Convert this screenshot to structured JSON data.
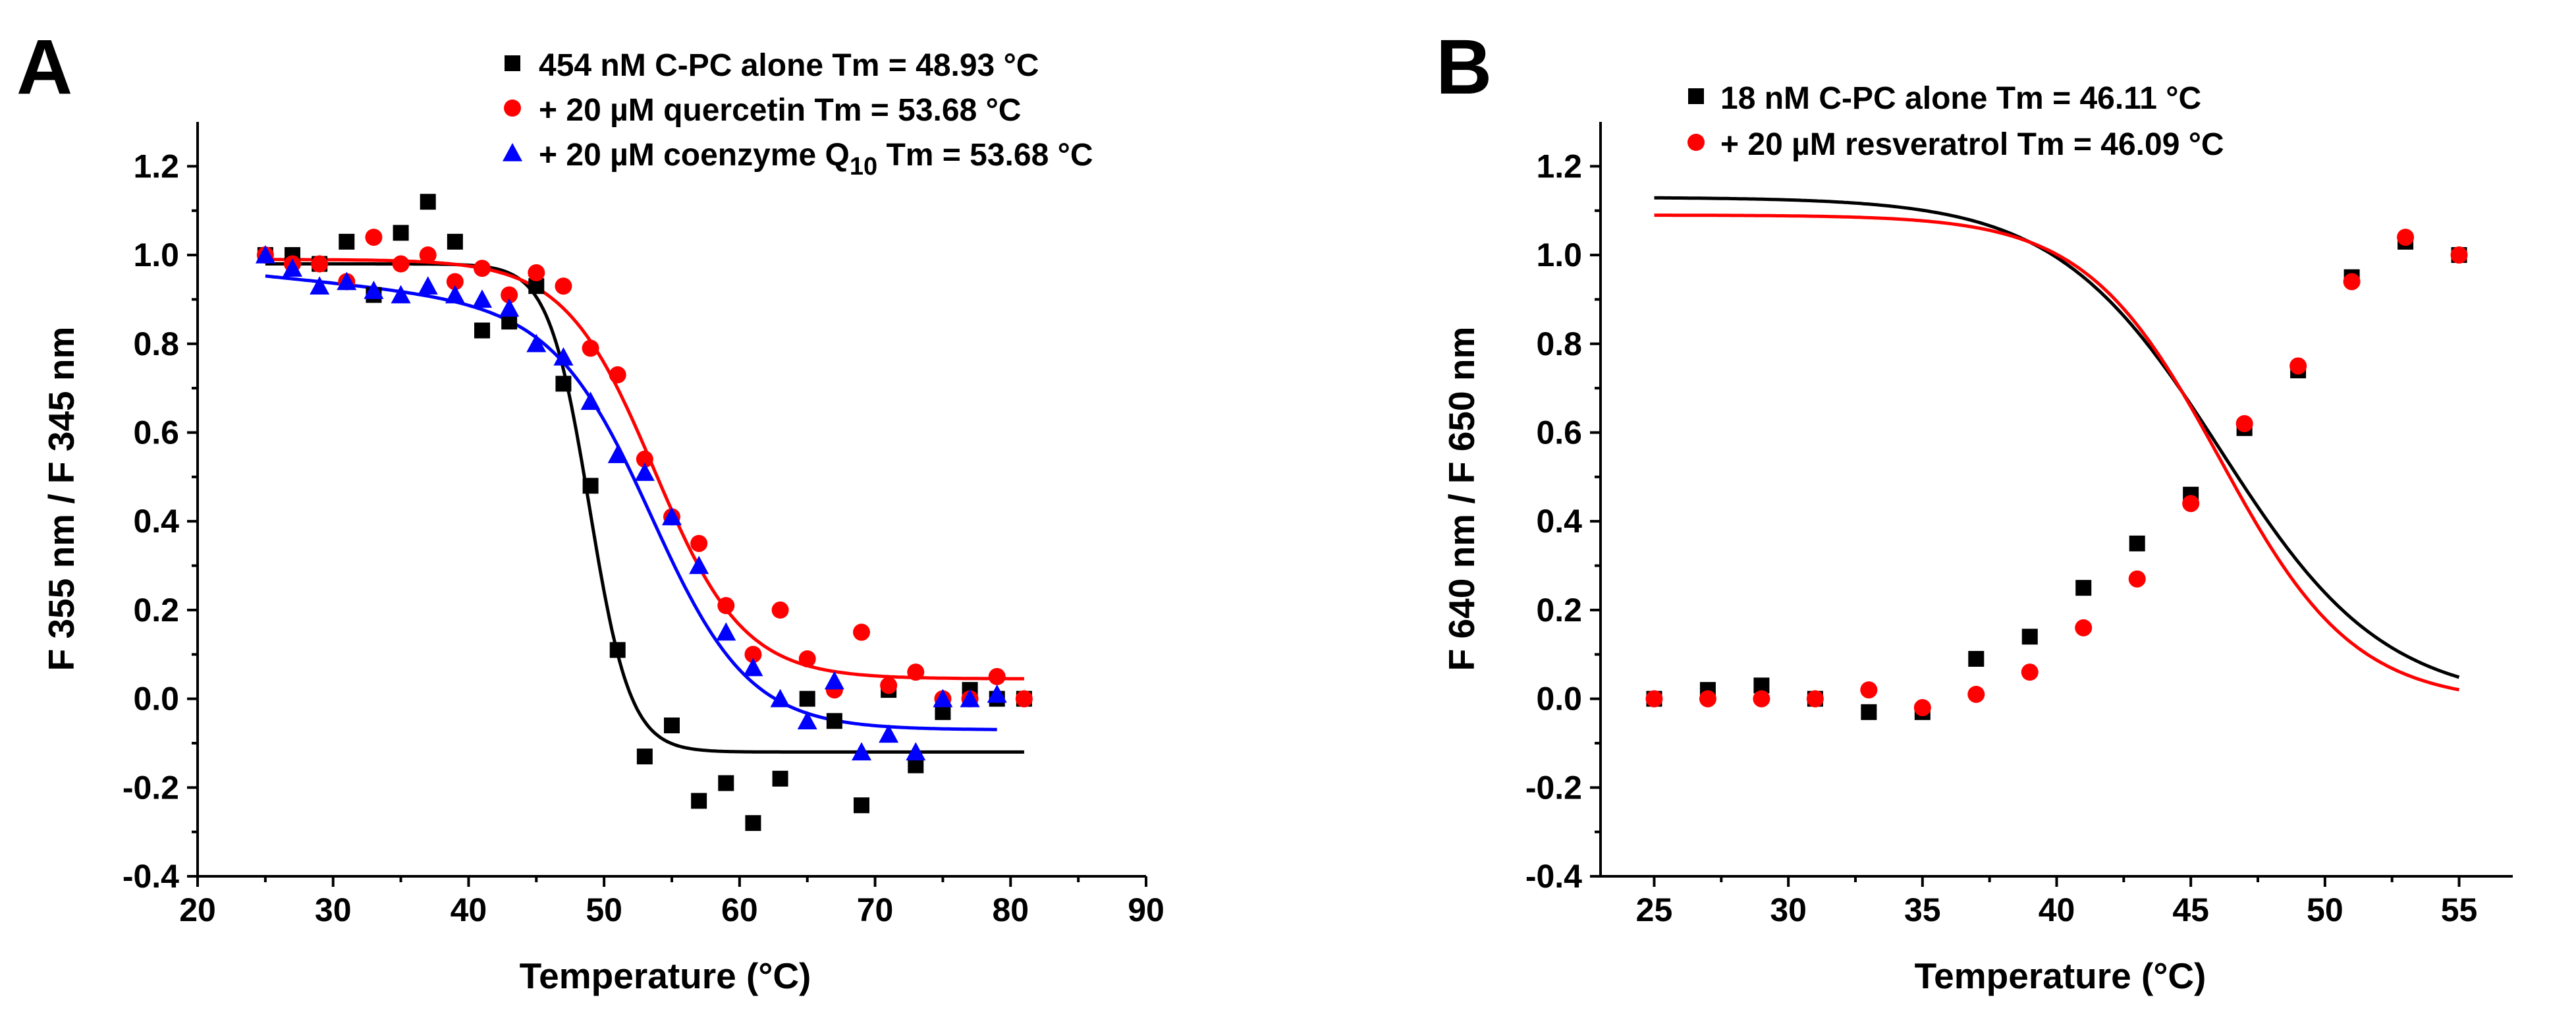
{
  "chart_data": [
    {
      "type": "scatter",
      "panel": "A",
      "xlabel": "Temperature (°C)",
      "ylabel": "F 355 nm / F 345 nm",
      "xlim": [
        20,
        90
      ],
      "ylim": [
        -0.4,
        1.3
      ],
      "xticks": [
        20,
        30,
        40,
        50,
        60,
        70,
        80,
        90
      ],
      "yticks": [
        -0.4,
        -0.2,
        0.0,
        0.2,
        0.4,
        0.6,
        0.8,
        1.0,
        1.2
      ],
      "xtick_labels": [
        "20",
        "30",
        "40",
        "50",
        "60",
        "70",
        "80",
        "90"
      ],
      "ytick_labels": [
        "-0.4",
        "-0.2",
        "0.0",
        "0.2",
        "0.4",
        "0.6",
        "0.8",
        "1.0",
        "1.2"
      ],
      "legend_position": "top-right",
      "series": [
        {
          "name": "454 nM C-PC alone Tm = 48.93 °C",
          "legend_parts": [
            "454 nM C-PC alone Tm = 48.93 °C"
          ],
          "color": "#000000",
          "marker": "square",
          "x": [
            25,
            27,
            29,
            31,
            33,
            35,
            37,
            39,
            41,
            43,
            45,
            47,
            49,
            51,
            53,
            55,
            57,
            59,
            61,
            63,
            65,
            67,
            69,
            71,
            73,
            75,
            77,
            79,
            81
          ],
          "y": [
            1.0,
            1.0,
            0.98,
            1.03,
            0.91,
            1.05,
            1.12,
            1.03,
            0.83,
            0.85,
            0.93,
            0.71,
            0.48,
            0.11,
            -0.13,
            -0.06,
            -0.23,
            -0.19,
            -0.28,
            -0.18,
            -0.0,
            -0.05,
            -0.24,
            0.02,
            -0.15,
            -0.03,
            0.02,
            0.0,
            0.0
          ],
          "fit": {
            "model": "boltzmann",
            "top": 0.98,
            "bottom": -0.12,
            "tm": 48.93,
            "slope": 1.5,
            "x_range": [
              25,
              81
            ]
          }
        },
        {
          "name": "+ 20 µM quercetin Tm = 53.68 °C",
          "legend_parts": [
            "+ 20 µM quercetin Tm = 53.68 °C"
          ],
          "color": "#ff0000",
          "marker": "circle",
          "x": [
            25,
            27,
            29,
            31,
            33,
            35,
            37,
            39,
            41,
            43,
            45,
            47,
            49,
            51,
            53,
            55,
            57,
            59,
            61,
            63,
            65,
            67,
            69,
            71,
            73,
            75,
            77,
            79,
            81
          ],
          "y": [
            1.0,
            0.98,
            0.98,
            0.94,
            1.04,
            0.98,
            1.0,
            0.94,
            0.97,
            0.91,
            0.96,
            0.93,
            0.79,
            0.73,
            0.54,
            0.41,
            0.35,
            0.21,
            0.1,
            0.2,
            0.09,
            0.02,
            0.15,
            0.03,
            0.06,
            0.0,
            0.0,
            0.05,
            0.0
          ],
          "fit": {
            "model": "boltzmann",
            "top": 0.99,
            "bottom": 0.045,
            "tm": 53.68,
            "slope": 3.3,
            "x_range": [
              25,
              81
            ]
          }
        },
        {
          "name": "+ 20 µM coenzyme Q10 Tm = 53.68 °C",
          "legend_parts": [
            "+ 20 µM coenzyme Q",
            "10",
            " Tm = 53.68 °C"
          ],
          "color": "#0000ff",
          "marker": "triangle",
          "x": [
            25,
            27,
            29,
            31,
            33,
            35,
            37,
            39,
            41,
            43,
            45,
            47,
            49,
            51,
            53,
            55,
            57,
            59,
            61,
            63,
            65,
            67,
            69,
            71,
            73,
            75,
            77,
            79
          ],
          "y": [
            1.0,
            0.97,
            0.93,
            0.94,
            0.92,
            0.91,
            0.93,
            0.91,
            0.9,
            0.88,
            0.8,
            0.77,
            0.67,
            0.55,
            0.51,
            0.41,
            0.3,
            0.15,
            0.07,
            0.0,
            -0.05,
            0.04,
            -0.12,
            -0.08,
            -0.12,
            0.0,
            0.0,
            0.01
          ],
          "fit": {
            "model": "boltzmann_linear",
            "top": 0.953,
            "top_slope": -0.003,
            "bottom": -0.07,
            "tm": 53.68,
            "slope": 3.6,
            "x_range": [
              25,
              79
            ]
          }
        }
      ]
    },
    {
      "type": "scatter",
      "panel": "B",
      "xlabel": "Temperature (°C)",
      "ylabel": "F 640 nm / F 650 nm",
      "xlim": [
        23,
        57
      ],
      "ylim": [
        -0.4,
        1.3
      ],
      "xticks": [
        25,
        30,
        35,
        40,
        45,
        50,
        55
      ],
      "yticks": [
        -0.4,
        -0.2,
        0.0,
        0.2,
        0.4,
        0.6,
        0.8,
        1.0,
        1.2
      ],
      "xtick_labels": [
        "25",
        "30",
        "35",
        "40",
        "45",
        "50",
        "55"
      ],
      "ytick_labels": [
        "-0.4",
        "-0.2",
        "0.0",
        "0.2",
        "0.4",
        "0.6",
        "0.8",
        "1.0",
        "1.2"
      ],
      "legend_position": "top-left",
      "series": [
        {
          "name": "18 nM C-PC alone Tm = 46.11 °C",
          "legend_parts": [
            "18 nM C-PC alone Tm = 46.11 °C"
          ],
          "color": "#000000",
          "marker": "square",
          "x": [
            25,
            27,
            29,
            31,
            33,
            35,
            37,
            39,
            41,
            43,
            45,
            47,
            49,
            51,
            53,
            55
          ],
          "y": [
            0.0,
            0.02,
            0.03,
            0.0,
            -0.03,
            -0.03,
            0.09,
            0.14,
            0.25,
            0.35,
            0.46,
            0.61,
            0.74,
            0.95,
            1.03,
            1.0
          ],
          "fit": {
            "model": "boltzmann",
            "top": 1.13,
            "bottom": -0.01,
            "tm": 46.11,
            "slope": 3.05,
            "x_range": [
              25,
              55
            ]
          }
        },
        {
          "name": "+ 20 µM resveratrol Tm = 46.09 °C",
          "legend_parts": [
            "+ 20 µM resveratrol Tm = 46.09 °C"
          ],
          "color": "#ff0000",
          "marker": "circle",
          "x": [
            25,
            27,
            29,
            31,
            33,
            35,
            37,
            39,
            41,
            43,
            45,
            47,
            49,
            51,
            53,
            55
          ],
          "y": [
            0.0,
            0.0,
            0.0,
            0.0,
            0.02,
            -0.02,
            0.01,
            0.06,
            0.16,
            0.27,
            0.44,
            0.62,
            0.75,
            0.94,
            1.04,
            1.0
          ],
          "fit": {
            "model": "boltzmann",
            "top": 1.09,
            "bottom": -0.01,
            "tm": 46.09,
            "slope": 2.5,
            "x_range": [
              25,
              55
            ]
          }
        }
      ]
    }
  ]
}
